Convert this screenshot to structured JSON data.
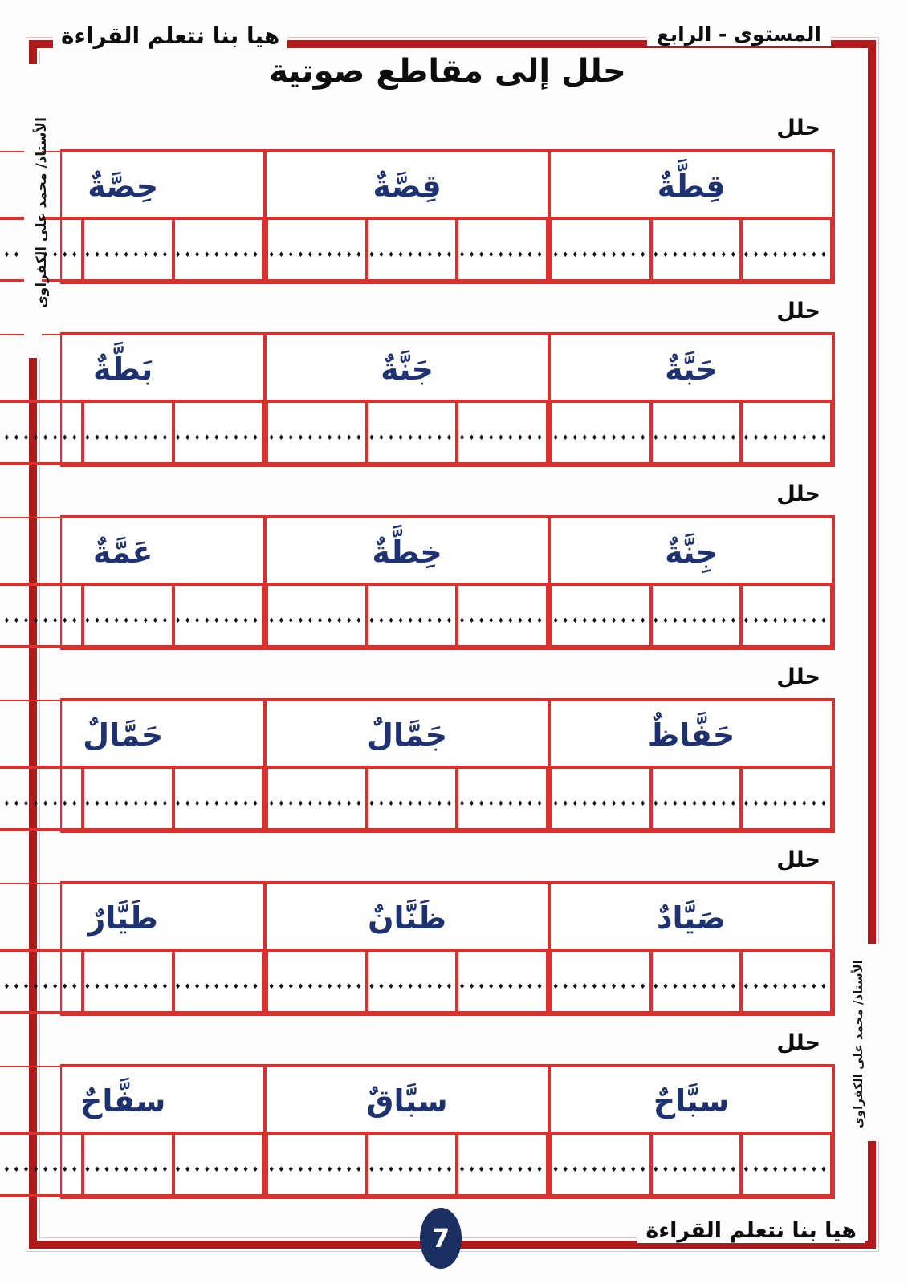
{
  "header": {
    "left_title": "هيا بنا نتعلم القراءة",
    "right_title": "المستوى - الرابع"
  },
  "title": "حلل إلى مقاطع صوتية",
  "teacher_left": "الأستاذ/ محمد على الكفراوى",
  "teacher_right": "الأستاذ/ محمد على الكفراوى",
  "sections": [
    {
      "label": "حلل",
      "words": [
        "قِطَّةٌ",
        "قِصَّةٌ",
        "حِصَّةٌ"
      ]
    },
    {
      "label": "حلل",
      "words": [
        "حَبَّةٌ",
        "جَنَّةٌ",
        "بَطَّةٌ"
      ]
    },
    {
      "label": "حلل",
      "words": [
        "جِنَّةٌ",
        "خِطَّةٌ",
        "عَمَّةٌ"
      ]
    },
    {
      "label": "حلل",
      "words": [
        "حَفَّاظٌ",
        "جَمَّالٌ",
        "حَمَّالٌ"
      ]
    },
    {
      "label": "حلل",
      "words": [
        "صَيَّادٌ",
        "ظَنَّانٌ",
        "طَيَّارٌ"
      ]
    },
    {
      "label": "حلل",
      "words": [
        "سبَّاحٌ",
        "سبَّاقٌ",
        "سفَّاحٌ"
      ]
    }
  ],
  "answer_dots": [
    "♦♦♦♦♦♦♦♦♦",
    "♦♦♦♦♦♦♦♦♦",
    "♦♦♦♦♦♦♦♦♦♦"
  ],
  "footer": {
    "page_number": "7",
    "brand": "هيا بنا نتعلم القراءة"
  },
  "colors": {
    "frame_red": "#b11a1a",
    "table_red": "#d93030",
    "word_navy": "#1e3272"
  }
}
